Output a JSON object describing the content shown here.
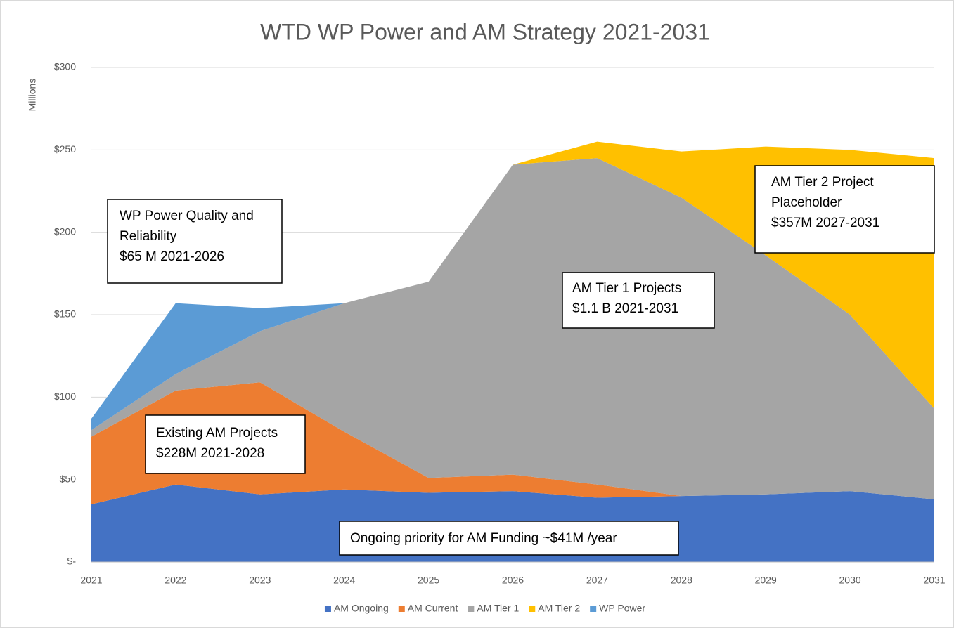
{
  "chart_data": {
    "type": "stacked_area",
    "title": "WTD WP Power and AM Strategy 2021-2031",
    "y_label": "Millions",
    "categories": [
      "2021",
      "2022",
      "2023",
      "2024",
      "2025",
      "2026",
      "2027",
      "2028",
      "2029",
      "2030",
      "2031"
    ],
    "series": [
      {
        "name": "AM Ongoing",
        "color": "#4472c4",
        "values": [
          35,
          47,
          41,
          44,
          42,
          43,
          39,
          40,
          41,
          43,
          38
        ]
      },
      {
        "name": "AM Current",
        "color": "#ed7d31",
        "values": [
          41,
          57,
          68,
          35,
          9,
          10,
          8,
          0,
          0,
          0,
          0
        ]
      },
      {
        "name": "AM Tier 1",
        "color": "#a5a5a5",
        "values": [
          4,
          10,
          31,
          78,
          119,
          188,
          198,
          181,
          145,
          107,
          55
        ]
      },
      {
        "name": "AM Tier 2",
        "color": "#ffc000",
        "values": [
          0,
          0,
          0,
          0,
          0,
          0,
          10,
          28,
          66,
          100,
          152
        ]
      },
      {
        "name": "WP Power",
        "color": "#5b9bd5",
        "values": [
          7,
          43,
          14,
          0,
          0,
          0,
          0,
          0,
          0,
          0,
          0
        ]
      }
    ],
    "ylim": [
      0,
      300
    ],
    "yticks": [
      {
        "value": 0,
        "label": "$-"
      },
      {
        "value": 50,
        "label": "$50"
      },
      {
        "value": 100,
        "label": "$100"
      },
      {
        "value": 150,
        "label": "$150"
      },
      {
        "value": 200,
        "label": "$200"
      },
      {
        "value": 250,
        "label": "$250"
      },
      {
        "value": 300,
        "label": "$300"
      }
    ],
    "grid": true,
    "legend": "bottom",
    "annotations": [
      {
        "lines": [
          "WP Power Quality and",
          "Reliability",
          "$65 M 2021-2026"
        ]
      },
      {
        "lines": [
          "Existing AM Projects",
          "$228M 2021-2028"
        ]
      },
      {
        "lines": [
          "AM Tier 1 Projects",
          "$1.1 B 2021-2031"
        ]
      },
      {
        "lines": [
          "AM Tier 2 Project",
          "Placeholder",
          "$357M 2027-2031"
        ]
      },
      {
        "lines": [
          "Ongoing priority for AM Funding ~$41M /year"
        ]
      }
    ]
  }
}
